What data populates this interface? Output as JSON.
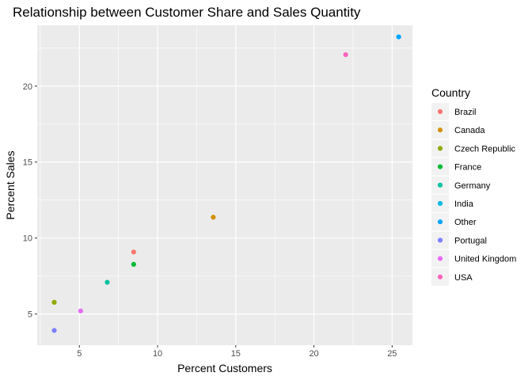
{
  "chart_data": {
    "type": "scatter",
    "title": "Relationship between Customer Share and Sales Quantity",
    "xlabel": "Percent Customers",
    "ylabel": "Percent Sales",
    "xlim": [
      2.3,
      26.3
    ],
    "ylim": [
      2.95,
      24.0
    ],
    "x_ticks": [
      5,
      10,
      15,
      20,
      25
    ],
    "y_ticks": [
      5,
      10,
      15,
      20
    ],
    "grid": true,
    "legend": {
      "title": "Country",
      "position": "right"
    },
    "series": [
      {
        "name": "Brazil",
        "color": "#F8766D",
        "x": [
          8.47
        ],
        "y": [
          9.08
        ]
      },
      {
        "name": "Canada",
        "color": "#D39200",
        "x": [
          13.56
        ],
        "y": [
          11.37
        ]
      },
      {
        "name": "Czech Republic",
        "color": "#93AA00",
        "x": [
          3.39
        ],
        "y": [
          5.77
        ]
      },
      {
        "name": "France",
        "color": "#00BA38",
        "x": [
          8.47
        ],
        "y": [
          8.27
        ]
      },
      {
        "name": "Germany",
        "color": "#00C19F",
        "x": [
          6.78
        ],
        "y": [
          7.09
        ]
      },
      {
        "name": "India",
        "color": "#00B9E3",
        "x": [],
        "y": []
      },
      {
        "name": "Other",
        "color": "#00A5FF",
        "x": [
          25.42
        ],
        "y": [
          23.24
        ]
      },
      {
        "name": "Portugal",
        "color": "#7C81FF",
        "x": [
          3.39
        ],
        "y": [
          3.92
        ]
      },
      {
        "name": "United Kingdom",
        "color": "#E76BF3",
        "x": [
          5.08
        ],
        "y": [
          5.2
        ]
      },
      {
        "name": "USA",
        "color": "#FF62BC",
        "x": [
          22.03
        ],
        "y": [
          22.07
        ]
      }
    ]
  }
}
